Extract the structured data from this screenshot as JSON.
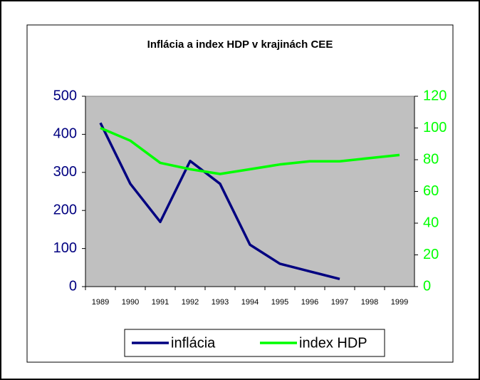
{
  "chart_data": {
    "type": "line",
    "title": "Inflácia a index HDP v krajinách CEE",
    "categories": [
      "1989",
      "1990",
      "1991",
      "1992",
      "1993",
      "1994",
      "1995",
      "1996",
      "1997",
      "1998",
      "1999"
    ],
    "series": [
      {
        "name": "inflácia",
        "color": "#000080",
        "values": [
          430,
          270,
          170,
          330,
          270,
          110,
          60,
          40,
          20,
          null,
          null
        ]
      },
      {
        "name": "index HDP",
        "color": "#00ff00",
        "axis": "y2",
        "values": [
          100,
          92,
          78,
          74,
          71,
          74,
          77,
          79,
          79,
          81,
          83
        ]
      }
    ],
    "ylim": [
      0,
      500
    ],
    "yticks": [
      0,
      100,
      200,
      300,
      400,
      500
    ],
    "y2lim": [
      0,
      120
    ],
    "y2ticks": [
      0,
      20,
      40,
      60,
      80,
      100,
      120
    ],
    "plot_background": "#c0c0c0",
    "legend": "bottom"
  }
}
